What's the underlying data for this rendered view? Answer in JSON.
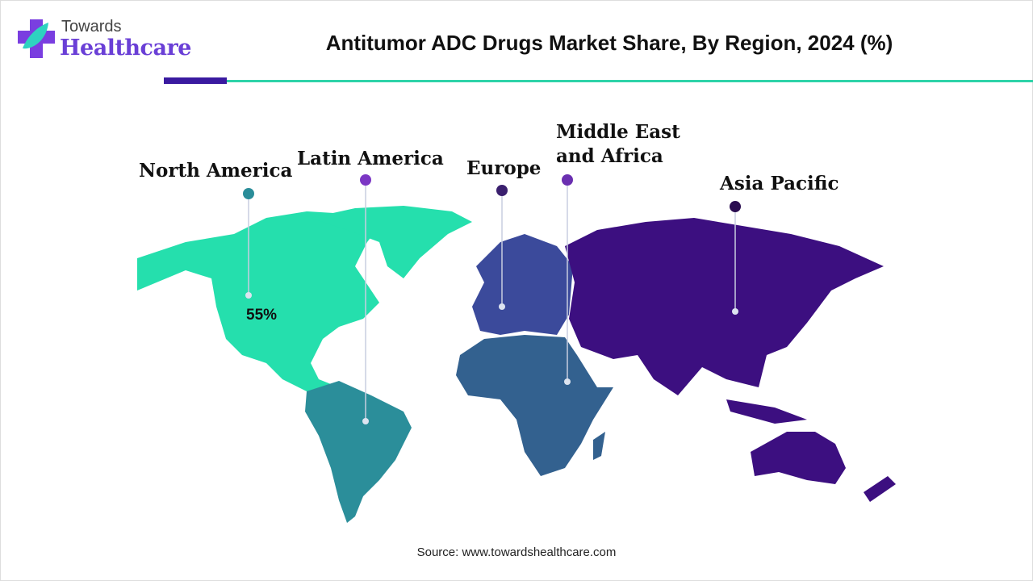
{
  "brand": {
    "line1": "Towards",
    "line2": "Healthcare"
  },
  "title": "Antitumor ADC Drugs Market Share, By Region, 2024 (%)",
  "regions": [
    {
      "name": "North America",
      "value": "55%",
      "color": "#25dfad",
      "dot": "#2a8d99"
    },
    {
      "name": "Latin America",
      "color": "#2b8e9a",
      "dot": "#7b36c4"
    },
    {
      "name": "Europe",
      "color": "#3b4a9b",
      "dot": "#3a1f6e"
    },
    {
      "name": "Middle East and Africa",
      "color": "#33618f",
      "dot": "#6a2fb0"
    },
    {
      "name": "Asia Pacific",
      "color": "#3c0f80",
      "dot": "#2a0d50"
    }
  ],
  "source": "Source: www.towardshealthcare.com"
}
